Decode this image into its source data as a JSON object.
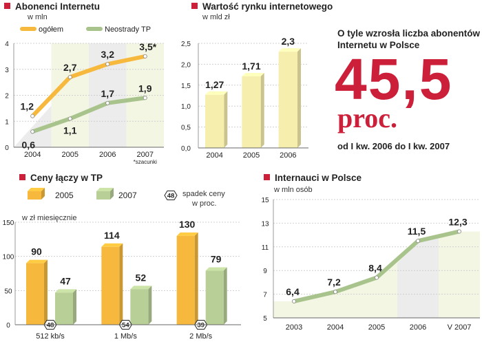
{
  "colors": {
    "red": "#cc1f3a",
    "yellow": "#f6b93e",
    "yellow_light": "#f6eeac",
    "green": "#b9cf98",
    "green_line": "#a8c48c",
    "band_a": "#ececec",
    "band_b": "#f4f6e4"
  },
  "abonenci": {
    "title": "Abonenci Internetu",
    "unit": "w mln",
    "legend": [
      "ogółem",
      "Neostrady TP"
    ],
    "footnote": "*szacunki",
    "chart_data": {
      "type": "line",
      "categories": [
        "2004",
        "2005",
        "2006",
        "2007"
      ],
      "ylim": [
        0,
        4
      ],
      "yticks": [
        "0",
        "1",
        "2",
        "3",
        "4"
      ],
      "series": [
        {
          "name": "ogółem",
          "values": [
            1.2,
            2.7,
            3.2,
            3.5
          ],
          "labels": [
            "1,2",
            "2,7",
            "3,2",
            "3,5*"
          ]
        },
        {
          "name": "Neostrady TP",
          "values": [
            0.6,
            1.1,
            1.7,
            1.9
          ],
          "labels": [
            "0,6",
            "1,1",
            "1,7",
            "1,9"
          ]
        }
      ]
    }
  },
  "rynek": {
    "title": "Wartość rynku internetowego",
    "unit": "w mld zł",
    "chart_data": {
      "type": "bar",
      "categories": [
        "2004",
        "2005",
        "2006"
      ],
      "values": [
        1.27,
        1.71,
        2.3
      ],
      "labels": [
        "1,27",
        "1,71",
        "2,3"
      ],
      "ylim": [
        0,
        2.5
      ],
      "yticks": [
        "0,0",
        "0,5",
        "1,0",
        "1,5",
        "2,0",
        "2,5"
      ]
    }
  },
  "wzrost": {
    "heading": "O tyle wzrosła liczba abonentów Internetu w Polsce",
    "value": "45,5",
    "unit": "proc.",
    "period": "od I kw. 2006 do I kw. 2007"
  },
  "ceny": {
    "title": "Ceny łączy w TP",
    "unit": "w zł miesięcznie",
    "legend": [
      "2005",
      "2007"
    ],
    "drop_legend": [
      "spadek ceny",
      "w proc."
    ],
    "drop_legend_sample": "48",
    "chart_data": {
      "type": "bar",
      "categories": [
        "512 kb/s",
        "1 Mb/s",
        "2 Mb/s"
      ],
      "ylim": [
        0,
        150
      ],
      "yticks": [
        "0",
        "50",
        "100",
        "150"
      ],
      "series": [
        {
          "name": "2005",
          "values": [
            90,
            114,
            130
          ],
          "labels": [
            "90",
            "114",
            "130"
          ]
        },
        {
          "name": "2007",
          "values": [
            47,
            52,
            79
          ],
          "labels": [
            "47",
            "52",
            "79"
          ]
        }
      ],
      "drops": [
        "48",
        "54",
        "39"
      ]
    }
  },
  "internauci": {
    "title": "Internauci w Polsce",
    "unit": "w mln osób",
    "chart_data": {
      "type": "line",
      "categories": [
        "2003",
        "2004",
        "2005",
        "2006",
        "V 2007"
      ],
      "values": [
        6.4,
        7.2,
        8.4,
        11.5,
        12.3
      ],
      "labels": [
        "6,4",
        "7,2",
        "8,4",
        "11,5",
        "12,3"
      ],
      "ylim": [
        5,
        15
      ],
      "yticks": [
        "5",
        "7",
        "9",
        "11",
        "13",
        "15"
      ]
    }
  }
}
